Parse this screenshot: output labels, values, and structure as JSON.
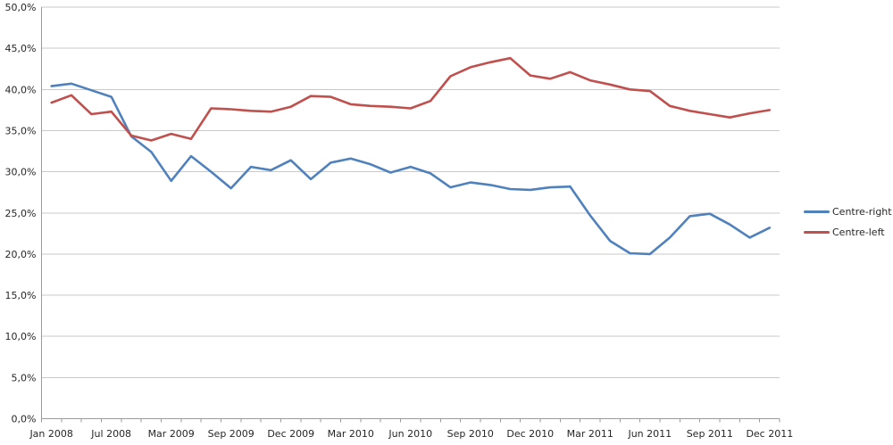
{
  "chart": {
    "legend": {
      "items": [
        {
          "label": "Centre-right",
          "color": "#4F81BD"
        },
        {
          "label": "Centre-left",
          "color": "#C0504D"
        }
      ]
    }
  },
  "chart_data": {
    "type": "line",
    "title": "",
    "grid": true,
    "legend_position": "right",
    "y_axis": {
      "min": 0,
      "max": 50,
      "step": 5,
      "tick_labels": [
        "50,0%",
        "45,0%",
        "40,0%",
        "35,0%",
        "30,0%",
        "25,0%",
        "20,0%",
        "15,0%",
        "10,0%",
        "5,0%",
        "0,0%"
      ],
      "format": "percent-comma-decimal"
    },
    "x_axis": {
      "n_points": 37,
      "tick_labels": [
        "Jan 2008",
        "Jul 2008",
        "Mar 2009",
        "Sep 2009",
        "Dec 2009",
        "Mar 2010",
        "Jun 2010",
        "Sep 2010",
        "Dec 2010",
        "Mar 2011",
        "Jun 2011",
        "Sep 2011",
        "Dec 2011"
      ],
      "tick_label_indices": [
        0,
        3,
        6,
        9,
        12,
        15,
        18,
        21,
        24,
        27,
        30,
        33,
        36
      ]
    },
    "series": [
      {
        "name": "Centre-right",
        "color": "#4F81BD",
        "values": [
          40.4,
          40.7,
          39.9,
          39.1,
          34.3,
          32.4,
          28.9,
          31.9,
          30.0,
          28.0,
          30.6,
          30.2,
          31.4,
          29.1,
          31.1,
          31.6,
          30.9,
          29.9,
          30.6,
          29.8,
          28.1,
          28.7,
          28.4,
          27.9,
          27.8,
          28.1,
          28.2,
          24.7,
          21.6,
          20.1,
          20.0,
          22.0,
          24.6,
          24.9,
          23.6,
          22.0,
          23.2
        ]
      },
      {
        "name": "Centre-left",
        "color": "#C0504D",
        "values": [
          38.4,
          39.3,
          37.0,
          37.3,
          34.4,
          33.8,
          34.6,
          34.0,
          37.7,
          37.6,
          37.4,
          37.3,
          37.9,
          39.2,
          39.1,
          38.2,
          38.0,
          37.9,
          37.7,
          38.6,
          41.6,
          42.7,
          43.3,
          43.8,
          41.7,
          41.3,
          42.1,
          41.1,
          40.6,
          40.0,
          39.8,
          38.0,
          37.4,
          37.0,
          36.6,
          37.1,
          37.5
        ]
      }
    ],
    "style": {
      "gridline_color": "#C9C9C9",
      "axis_color": "#9A9A9A",
      "text_color": "#262626",
      "background": "#FFFFFF"
    }
  }
}
